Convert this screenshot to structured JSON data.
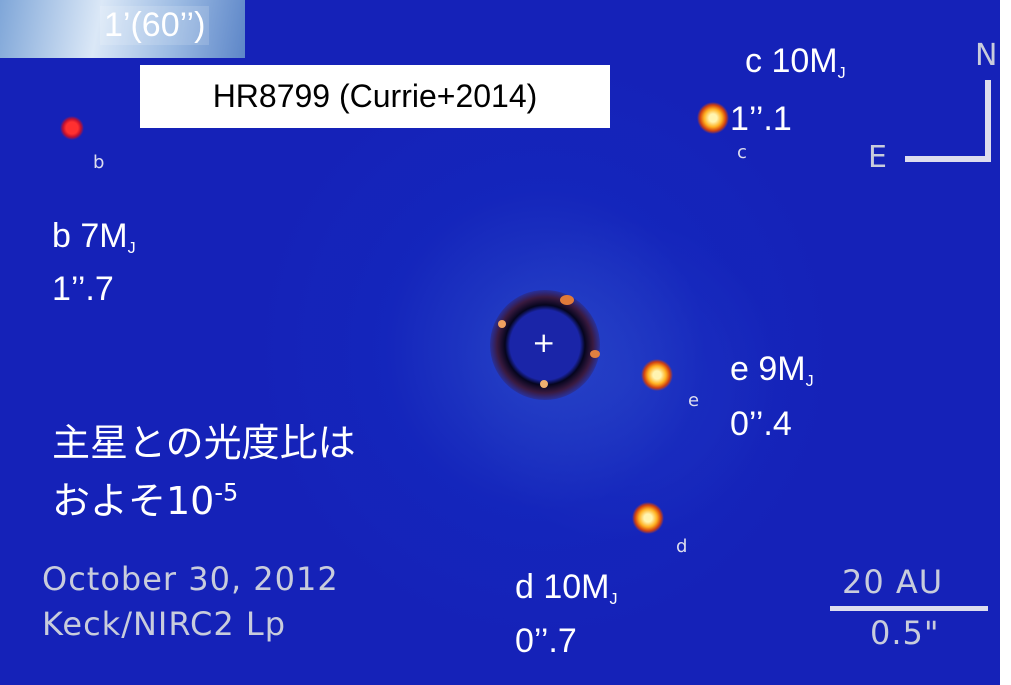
{
  "scale_label": "1’(60’’)",
  "title": "HR8799 (Currie+2014)",
  "planets": [
    {
      "marker": "b",
      "mass": "b 7M",
      "mass_subscript": "J",
      "separation": "1’’.7"
    },
    {
      "marker": "c",
      "mass": "c 10M",
      "mass_subscript": "J",
      "separation": "1’’.1"
    },
    {
      "marker": "e",
      "mass": "e 9M",
      "mass_subscript": "J",
      "separation": "0’’.4"
    },
    {
      "marker": "d",
      "mass": "d 10M",
      "mass_subscript": "J",
      "separation": "0’’.7"
    }
  ],
  "contrast_note": {
    "line1": "主星との光度比は",
    "line2": "およそ10",
    "exponent": "-5"
  },
  "observation": {
    "date": "October 30, 2012",
    "instrument": "Keck/NIRC2 Lp"
  },
  "star_marker": "+",
  "compass": {
    "north": "N",
    "east": "E"
  },
  "scale_bar": {
    "physical": "20 AU",
    "angular": "0.5\""
  }
}
